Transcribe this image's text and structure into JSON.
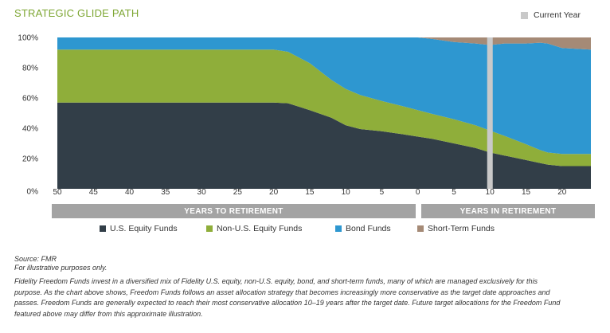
{
  "title": "STRATEGIC GLIDE PATH",
  "current_year_label": "Current Year",
  "band_labels": {
    "to": "YEARS TO RETIREMENT",
    "in": "YEARS IN RETIREMENT"
  },
  "source": "Source: FMR",
  "note": "For illustrative purposes only.",
  "description": "Fidelity Freedom Funds invest in a diversified mix of Fidelity U.S. equity, non-U.S. equity, bond, and short-term funds, many of which are managed exclusively for this purpose. As the chart above shows, Freedom Funds follows an asset allocation strategy that becomes increasingly more conservative as the target date approaches and passes. Freedom Funds are generally expected to reach their most conservative allocation 10–19 years after the target date. Future target allocations for the Freedom Fund featured above may differ from this approximate illustration.",
  "colors": {
    "us_equity": "#323e48",
    "non_us_equity": "#8fae3a",
    "bond": "#2e97d0",
    "short_term": "#a58a76",
    "current_year": "#c9c9c9",
    "title": "#7da632"
  },
  "chart_data": {
    "type": "area",
    "stacked": true,
    "x_tick_labels": [
      "50",
      "45",
      "40",
      "35",
      "30",
      "25",
      "20",
      "15",
      "10",
      "5",
      "0",
      "5",
      "10",
      "15",
      "20"
    ],
    "y_tick_labels": [
      "0%",
      "20%",
      "40%",
      "60%",
      "80%",
      "100%"
    ],
    "ylim": [
      0,
      100
    ],
    "x_direction_note": "x = years relative to target date; negative = years to retirement, positive = years in retirement",
    "x": [
      -50,
      -20,
      -18,
      -15,
      -12,
      -10,
      -8,
      -5,
      -2,
      0,
      2,
      5,
      8,
      10,
      12,
      15,
      17,
      18,
      20,
      24
    ],
    "series": [
      {
        "name": "U.S. Equity Funds",
        "values": [
          57,
          57,
          56.5,
          52,
          47,
          42,
          39.5,
          38,
          36,
          34.5,
          33,
          30,
          27,
          24,
          22,
          19,
          17,
          16,
          15,
          15
        ]
      },
      {
        "name": "Non-U.S. Equity Funds",
        "values": [
          35,
          35,
          34,
          31,
          25,
          24,
          22.5,
          20,
          18.5,
          17.5,
          16.5,
          16,
          15,
          14.5,
          13,
          10.5,
          8.5,
          8,
          8,
          8
        ]
      },
      {
        "name": "Bond Funds",
        "values": [
          8,
          8,
          9.5,
          17,
          28,
          34,
          38,
          42,
          45.5,
          48,
          49.5,
          51,
          54,
          56.5,
          61,
          66.5,
          71,
          72,
          70,
          69
        ]
      },
      {
        "name": "Short-Term Funds",
        "values": [
          0,
          0,
          0,
          0,
          0,
          0,
          0,
          0,
          0,
          0,
          1,
          3,
          4,
          5,
          4,
          4,
          3.5,
          4,
          7,
          8
        ]
      }
    ],
    "current_year_x": 10,
    "legend_position": "bottom",
    "grid": false
  }
}
